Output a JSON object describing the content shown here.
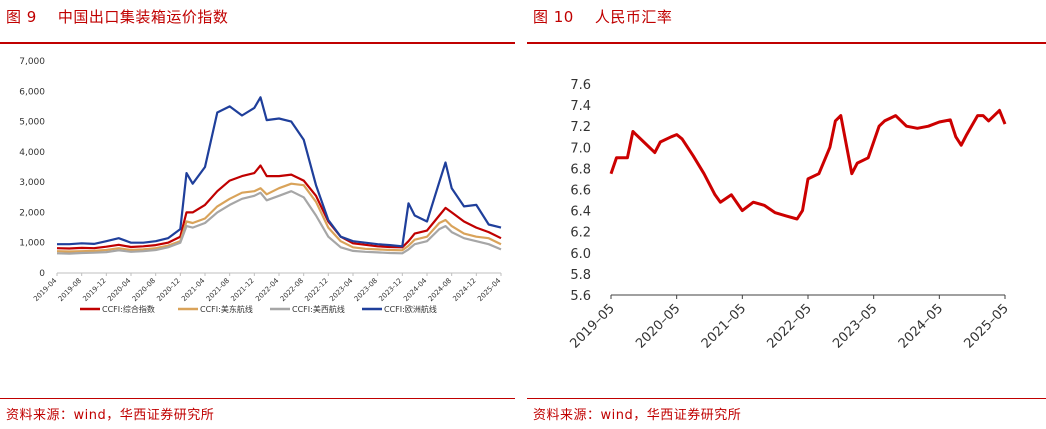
{
  "left_panel": {
    "title": "图 9    中国出口集装箱运价指数",
    "source": "资料来源：wind，华西证券研究所"
  },
  "right_panel": {
    "title": "图 10    人民币汇率",
    "source": "资料来源：wind，华西证券研究所"
  },
  "chart_data": [
    {
      "type": "line",
      "title": "",
      "ylim": [
        0,
        7000
      ],
      "yticks": [
        "0",
        "1,000",
        "2,000",
        "3,000",
        "4,000",
        "5,000",
        "6,000",
        "7,000"
      ],
      "xticks": [
        "2019-04",
        "2019-08",
        "2019-12",
        "2020-04",
        "2020-08",
        "2020-12",
        "2021-04",
        "2021-08",
        "2021-12",
        "2022-04",
        "2022-08",
        "2022-12",
        "2023-04",
        "2023-08",
        "2023-12",
        "2024-04",
        "2024-08",
        "2024-12",
        "2025-04"
      ],
      "legend_position": "bottom",
      "x": [
        "2019-04",
        "2019-06",
        "2019-08",
        "2019-10",
        "2019-12",
        "2020-02",
        "2020-04",
        "2020-06",
        "2020-08",
        "2020-10",
        "2020-12",
        "2021-01",
        "2021-02",
        "2021-04",
        "2021-06",
        "2021-08",
        "2021-10",
        "2021-12",
        "2022-01",
        "2022-02",
        "2022-04",
        "2022-06",
        "2022-08",
        "2022-10",
        "2022-12",
        "2023-02",
        "2023-04",
        "2023-06",
        "2023-08",
        "2023-10",
        "2023-12",
        "2024-01",
        "2024-02",
        "2024-04",
        "2024-06",
        "2024-07",
        "2024-08",
        "2024-10",
        "2024-12",
        "2025-02",
        "2025-04"
      ],
      "series": [
        {
          "name": "CCFI:综合指数",
          "color": "#c00000",
          "values": [
            820,
            810,
            830,
            820,
            870,
            930,
            860,
            880,
            920,
            1000,
            1200,
            2000,
            2000,
            2250,
            2700,
            3050,
            3200,
            3300,
            3550,
            3200,
            3200,
            3250,
            3050,
            2550,
            1700,
            1200,
            980,
            930,
            880,
            860,
            850,
            1050,
            1300,
            1400,
            1900,
            2150,
            2000,
            1700,
            1500,
            1350,
            1150
          ]
        },
        {
          "name": "CCFI:美东航线",
          "color": "#d9a35a",
          "values": [
            720,
            710,
            720,
            730,
            760,
            820,
            760,
            780,
            820,
            900,
            1050,
            1700,
            1650,
            1800,
            2200,
            2450,
            2650,
            2700,
            2800,
            2600,
            2800,
            2950,
            2900,
            2350,
            1500,
            1050,
            850,
            800,
            780,
            760,
            750,
            900,
            1100,
            1200,
            1650,
            1750,
            1550,
            1300,
            1200,
            1150,
            950
          ]
        },
        {
          "name": "CCFI:美西航线",
          "color": "#a6a6a6",
          "values": [
            650,
            640,
            660,
            670,
            690,
            750,
            700,
            720,
            760,
            850,
            1000,
            1550,
            1500,
            1650,
            2000,
            2250,
            2450,
            2550,
            2650,
            2400,
            2550,
            2700,
            2500,
            1900,
            1200,
            850,
            730,
            700,
            680,
            660,
            650,
            780,
            950,
            1050,
            1450,
            1550,
            1350,
            1150,
            1050,
            950,
            780
          ]
        },
        {
          "name": "CCFI:欧洲航线",
          "color": "#1f3f9b",
          "values": [
            950,
            950,
            980,
            960,
            1050,
            1150,
            1000,
            1000,
            1050,
            1150,
            1450,
            3300,
            2950,
            3500,
            5300,
            5500,
            5200,
            5450,
            5800,
            5050,
            5100,
            5000,
            4400,
            2900,
            1750,
            1200,
            1050,
            1000,
            950,
            920,
            880,
            2300,
            1900,
            1700,
            3000,
            3650,
            2800,
            2200,
            2250,
            1600,
            1500
          ]
        }
      ]
    },
    {
      "type": "line",
      "title": "",
      "ylim": [
        5.6,
        7.6
      ],
      "yticks": [
        "5.6",
        "5.8",
        "6.0",
        "6.2",
        "6.4",
        "6.6",
        "6.8",
        "7.0",
        "7.2",
        "7.4",
        "7.6"
      ],
      "xticks": [
        "2019–05",
        "2020–05",
        "2021–05",
        "2022–05",
        "2023–05",
        "2024–05",
        "2025–05"
      ],
      "x": [
        "2019-05",
        "2019-06",
        "2019-08",
        "2019-09",
        "2019-11",
        "2020-01",
        "2020-02",
        "2020-04",
        "2020-05",
        "2020-06",
        "2020-08",
        "2020-10",
        "2020-12",
        "2021-01",
        "2021-03",
        "2021-05",
        "2021-07",
        "2021-09",
        "2021-11",
        "2022-01",
        "2022-03",
        "2022-04",
        "2022-05",
        "2022-07",
        "2022-09",
        "2022-10",
        "2022-11",
        "2023-01",
        "2023-02",
        "2023-04",
        "2023-06",
        "2023-07",
        "2023-09",
        "2023-11",
        "2024-01",
        "2024-03",
        "2024-05",
        "2024-07",
        "2024-08",
        "2024-09",
        "2024-10",
        "2024-12",
        "2025-01",
        "2025-02",
        "2025-04",
        "2025-05"
      ],
      "series": [
        {
          "name": "",
          "color": "#cc0000",
          "values": [
            6.75,
            6.9,
            6.9,
            7.15,
            7.05,
            6.95,
            7.05,
            7.1,
            7.12,
            7.08,
            6.92,
            6.75,
            6.55,
            6.48,
            6.55,
            6.4,
            6.48,
            6.45,
            6.38,
            6.35,
            6.32,
            6.4,
            6.7,
            6.75,
            7.0,
            7.25,
            7.3,
            6.75,
            6.85,
            6.9,
            7.2,
            7.25,
            7.3,
            7.2,
            7.18,
            7.2,
            7.24,
            7.26,
            7.1,
            7.02,
            7.12,
            7.3,
            7.3,
            7.25,
            7.35,
            7.22
          ]
        }
      ]
    }
  ]
}
